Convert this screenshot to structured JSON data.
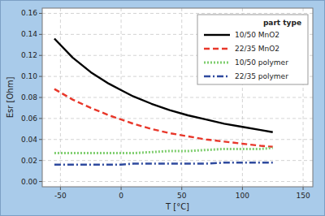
{
  "chart_data": {
    "type": "line",
    "x_label": "T [°C]",
    "y_label": "Esr [Ohm]",
    "legend_title": "part type",
    "x": [
      -55,
      -40,
      -25,
      -10,
      0,
      10,
      25,
      40,
      55,
      70,
      85,
      100,
      115,
      125
    ],
    "series": [
      {
        "name": "10/50 MnO2",
        "color": "#000000",
        "line_style": "solid",
        "values": [
          0.136,
          0.118,
          0.104,
          0.093,
          0.087,
          0.081,
          0.074,
          0.068,
          0.063,
          0.059,
          0.055,
          0.052,
          0.049,
          0.047
        ]
      },
      {
        "name": "22/35 MnO2",
        "color": "#e8372a",
        "line_style": "dashed",
        "values": [
          0.088,
          0.078,
          0.07,
          0.063,
          0.059,
          0.055,
          0.05,
          0.046,
          0.043,
          0.04,
          0.038,
          0.036,
          0.034,
          0.033
        ]
      },
      {
        "name": "10/50 polymer",
        "color": "#7fce6f",
        "line_style": "dotted",
        "values": [
          0.027,
          0.027,
          0.027,
          0.027,
          0.027,
          0.027,
          0.028,
          0.029,
          0.029,
          0.03,
          0.031,
          0.031,
          0.031,
          0.032
        ]
      },
      {
        "name": "22/35 polymer",
        "color": "#2e4a9e",
        "line_style": "dashdot",
        "values": [
          0.016,
          0.016,
          0.016,
          0.016,
          0.016,
          0.017,
          0.017,
          0.017,
          0.017,
          0.017,
          0.018,
          0.018,
          0.018,
          0.018
        ]
      }
    ],
    "xlim": [
      -65,
      158
    ],
    "ylim": [
      -0.005,
      0.165
    ],
    "xticks": [
      -50,
      0,
      50,
      100,
      150
    ],
    "yticks": [
      {
        "value": 0,
        "label": "0.00"
      },
      {
        "value": 0.02,
        "label": "0.02"
      },
      {
        "value": 0.04,
        "label": "0.04"
      },
      {
        "value": 0.06,
        "label": "0.06"
      },
      {
        "value": 0.08,
        "label": "0.08"
      },
      {
        "value": 0.1,
        "label": "0.10"
      },
      {
        "value": 0.12,
        "label": "0.12"
      },
      {
        "value": 0.14,
        "label": "0.14"
      },
      {
        "value": 0.16,
        "label": "0.16"
      }
    ],
    "grid": true,
    "legend": "upper right"
  }
}
